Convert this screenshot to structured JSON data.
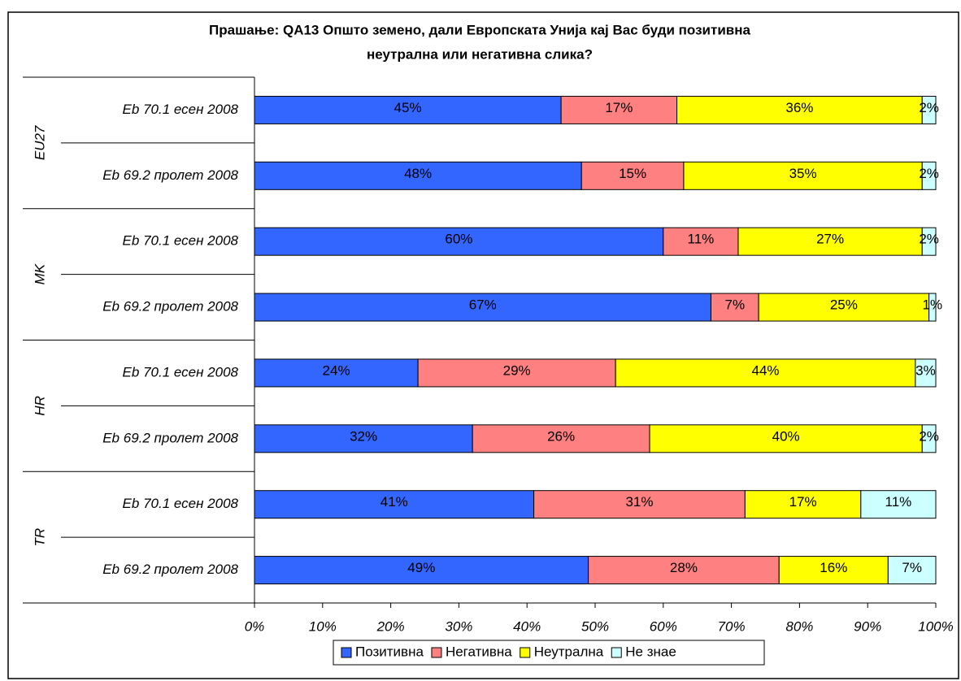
{
  "chart_data": {
    "type": "stacked_barh",
    "title": [
      "Прашање: QA13 Општо земено, дали Европската Унија кај Вас буди позитивна",
      "неутрална или негативна слика?"
    ],
    "groups": [
      "EU27",
      "MK",
      "HR",
      "TR"
    ],
    "categories": [
      "Eb 70.1 есен 2008",
      "Eb 69.2 пролет 2008",
      "Eb 70.1 есен 2008",
      "Eb 69.2 пролет 2008",
      "Eb 70.1 есен 2008",
      "Eb 69.2 пролет 2008",
      "Eb 70.1 есен 2008",
      "Eb 69.2 пролет 2008"
    ],
    "series": [
      {
        "name": "Позитивна",
        "color": "#3366ff",
        "values": [
          45,
          48,
          60,
          67,
          24,
          32,
          41,
          49
        ],
        "value_labels": [
          "45%",
          "48%",
          "60%",
          "67%",
          "24%",
          "32%",
          "41%",
          "49%"
        ]
      },
      {
        "name": "Негативна",
        "color": "#ff8080",
        "values": [
          17,
          15,
          11,
          7,
          29,
          26,
          31,
          28
        ],
        "value_labels": [
          "17%",
          "15%",
          "11%",
          "7%",
          "29%",
          "26%",
          "31%",
          "28%"
        ]
      },
      {
        "name": "Неутрална",
        "color": "#ffff00",
        "values": [
          36,
          35,
          27,
          25,
          44,
          40,
          17,
          16
        ],
        "value_labels": [
          "36%",
          "35%",
          "27%",
          "25%",
          "44%",
          "40%",
          "17%",
          "16%"
        ]
      },
      {
        "name": "Не знае",
        "color": "#ccffff",
        "values": [
          2,
          2,
          2,
          1,
          3,
          2,
          11,
          7
        ],
        "value_labels": [
          "2%",
          "2%",
          "2%",
          "1%",
          "3%",
          "2%",
          "11%",
          "7%"
        ]
      }
    ],
    "xlim": [
      0,
      100
    ],
    "xticks": [
      {
        "value": 0,
        "label": "0%"
      },
      {
        "value": 10,
        "label": "10%"
      },
      {
        "value": 20,
        "label": "20%"
      },
      {
        "value": 30,
        "label": "30%"
      },
      {
        "value": 40,
        "label": "40%"
      },
      {
        "value": 50,
        "label": "50%"
      },
      {
        "value": 60,
        "label": "60%"
      },
      {
        "value": 70,
        "label": "70%"
      },
      {
        "value": 80,
        "label": "80%"
      },
      {
        "value": 90,
        "label": "90%"
      },
      {
        "value": 100,
        "label": "100%"
      }
    ],
    "legend": "bottom"
  }
}
